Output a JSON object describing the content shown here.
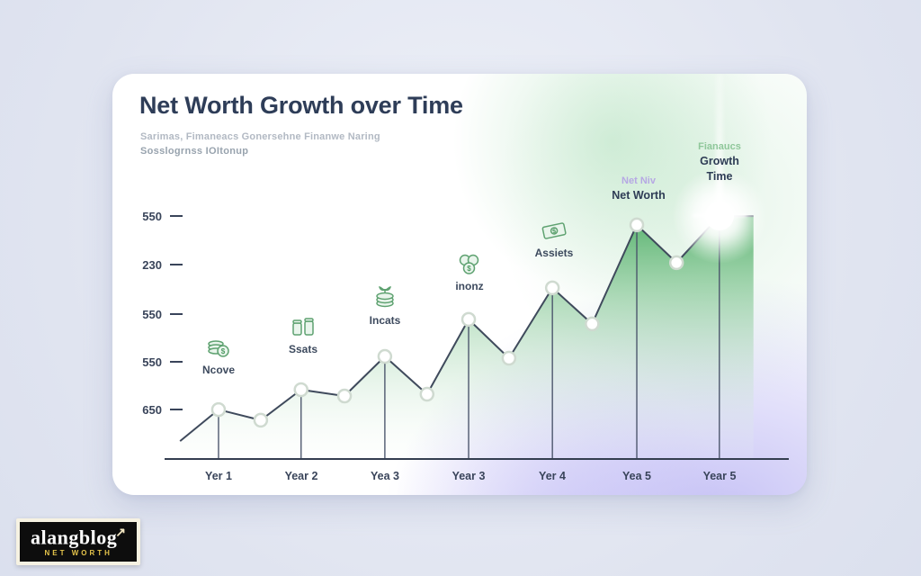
{
  "card": {
    "title": "Net Worth Growth over Time",
    "subtitle_line1": "Sarimas, Fimaneacs Gonersehne Finanwe Naring",
    "subtitle_line2": "Sosslogrnss IOItonup"
  },
  "chart_data": {
    "type": "area",
    "title": "Net Worth Growth over Time",
    "xlabel": "",
    "ylabel": "",
    "grid": false,
    "legend": "none",
    "ylim": [
      0,
      100
    ],
    "x_tick_labels": [
      "Yer 1",
      "Year 2",
      "Yea 3",
      "Year 3",
      "Yer 4",
      "Yea 5",
      "Year 5"
    ],
    "y_tick_labels": [
      "550",
      "230",
      "550",
      "550",
      "650"
    ],
    "series": [
      {
        "name": "Net Worth",
        "points": [
          {
            "x": 2.2,
            "y": 7.1
          },
          {
            "x": 8.4,
            "y": 19.6,
            "marker": true,
            "drop": true
          },
          {
            "x": 15.2,
            "y": 15.4,
            "marker": true
          },
          {
            "x": 21.7,
            "y": 27.5,
            "marker": true,
            "drop": true
          },
          {
            "x": 28.7,
            "y": 25.0,
            "marker": true
          },
          {
            "x": 35.2,
            "y": 40.7,
            "marker": true,
            "drop": true
          },
          {
            "x": 42.0,
            "y": 25.7,
            "marker": true
          },
          {
            "x": 48.7,
            "y": 55.4,
            "marker": true,
            "drop": true
          },
          {
            "x": 55.2,
            "y": 40.0,
            "marker": true
          },
          {
            "x": 62.2,
            "y": 67.9,
            "marker": true,
            "drop": true
          },
          {
            "x": 68.6,
            "y": 53.6,
            "marker": true
          },
          {
            "x": 75.8,
            "y": 92.9,
            "marker": true,
            "drop": true
          },
          {
            "x": 82.2,
            "y": 77.9,
            "marker": true
          },
          {
            "x": 89.1,
            "y": 96.4,
            "drop": true
          },
          {
            "x": 94.6,
            "y": 96.4
          }
        ]
      }
    ],
    "icon_labels": [
      "Ncove",
      "Ssats",
      "Incats",
      "inonz",
      "Assiets"
    ],
    "annotations": {
      "peak6": {
        "line1": "Net Niv",
        "line2": "Net Worth"
      },
      "peak7": {
        "line1": "Fianaucs",
        "line2": "Growth",
        "line3": "Time"
      }
    },
    "colors": {
      "line": "#3f4a5c",
      "area_top": "#4fae66",
      "area_bottom": "#f2faf3",
      "accent_green": "#8fc79a",
      "accent_purple": "#b6a8e4"
    }
  },
  "logo": {
    "name": "alangblog",
    "arrow": "↗",
    "tagline": "net worth"
  }
}
